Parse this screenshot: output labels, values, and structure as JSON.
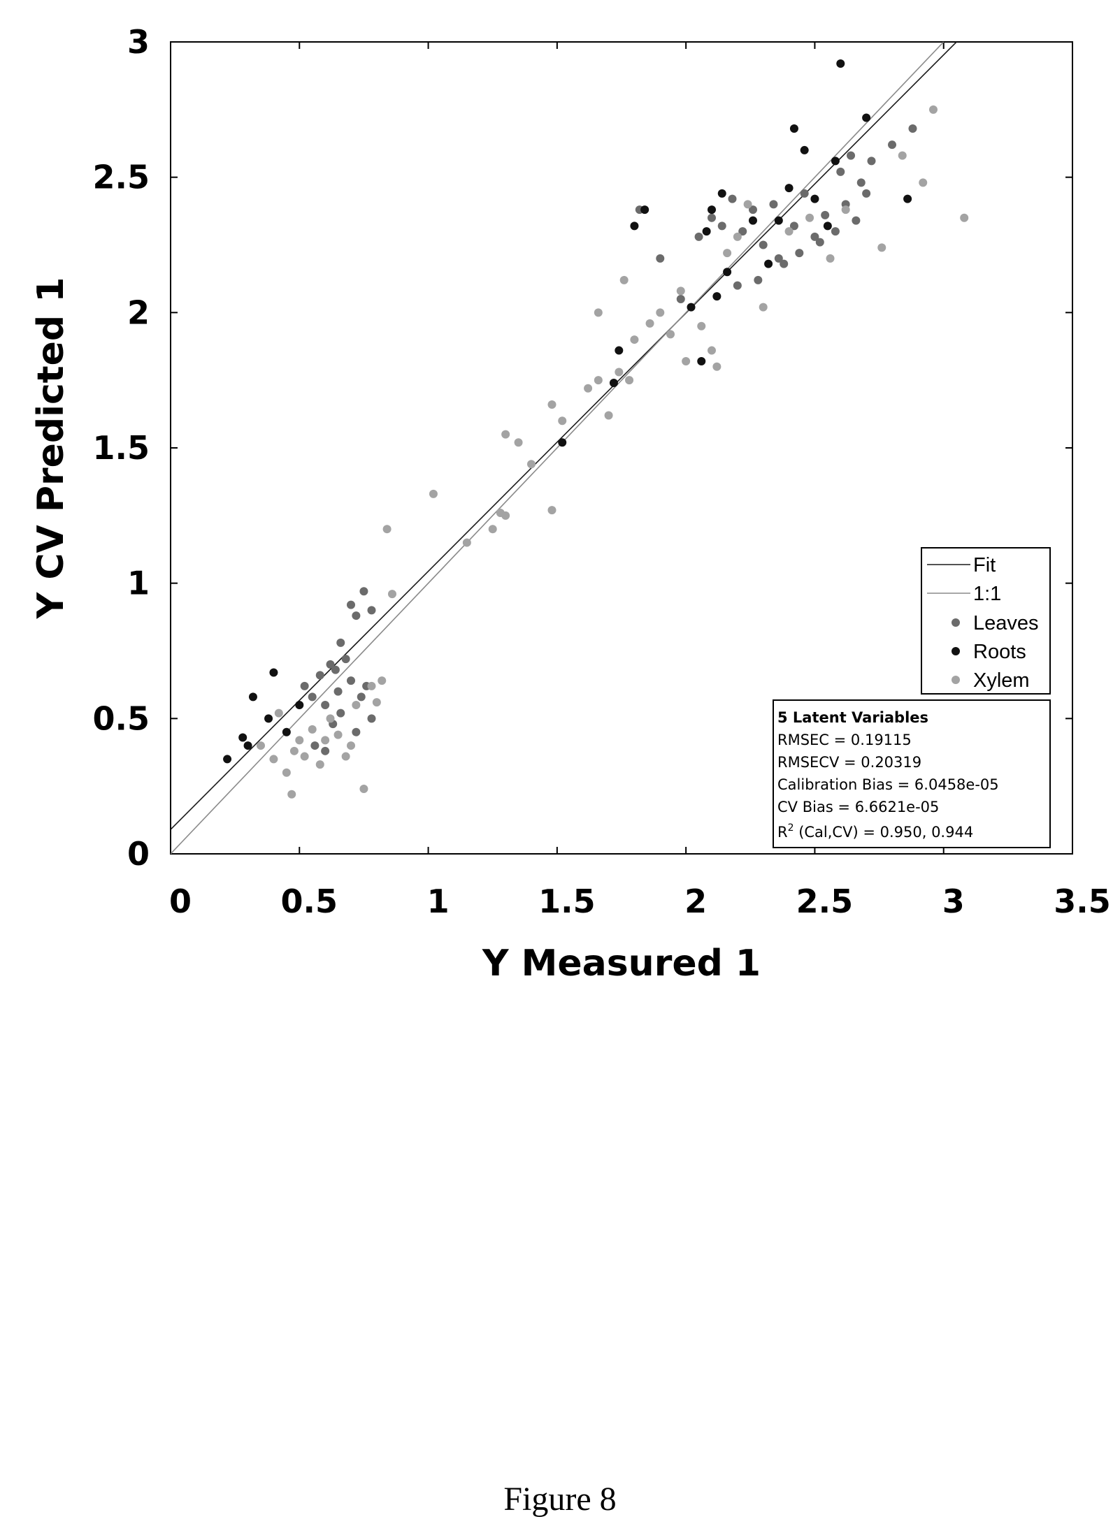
{
  "chart_data": {
    "type": "scatter",
    "xlabel": "Y Measured 1",
    "ylabel": "Y CV Predicted 1",
    "xlim": [
      0,
      3.5
    ],
    "ylim": [
      0,
      3
    ],
    "xticks": [
      "0",
      "0.5",
      "1",
      "1.5",
      "2",
      "2.5",
      "3",
      "3.5"
    ],
    "yticks": [
      "0",
      "0.5",
      "1",
      "1.5",
      "2",
      "2.5",
      "3"
    ],
    "grid": false,
    "legend_position": "right",
    "lines": [
      {
        "name": "Fit",
        "x": [
          0,
          3.05
        ],
        "y": [
          0.09,
          3.0
        ],
        "color": "#1a1a1a"
      },
      {
        "name": "1:1",
        "x": [
          0,
          3.0
        ],
        "y": [
          0,
          3.0
        ],
        "color": "#8a8a8a"
      }
    ],
    "series": [
      {
        "name": "Leaves",
        "color": "#6b6b6b",
        "points": [
          [
            0.52,
            0.62
          ],
          [
            0.55,
            0.58
          ],
          [
            0.58,
            0.66
          ],
          [
            0.6,
            0.55
          ],
          [
            0.62,
            0.7
          ],
          [
            0.63,
            0.48
          ],
          [
            0.65,
            0.6
          ],
          [
            0.66,
            0.52
          ],
          [
            0.68,
            0.72
          ],
          [
            0.7,
            0.64
          ],
          [
            0.72,
            0.45
          ],
          [
            0.74,
            0.58
          ],
          [
            0.76,
            0.62
          ],
          [
            0.78,
            0.5
          ],
          [
            0.56,
            0.4
          ],
          [
            0.6,
            0.38
          ],
          [
            0.64,
            0.68
          ],
          [
            0.7,
            0.92
          ],
          [
            0.72,
            0.88
          ],
          [
            0.75,
            0.97
          ],
          [
            0.78,
            0.9
          ],
          [
            0.66,
            0.78
          ],
          [
            1.82,
            2.38
          ],
          [
            1.9,
            2.2
          ],
          [
            1.98,
            2.05
          ],
          [
            2.05,
            2.28
          ],
          [
            2.1,
            2.35
          ],
          [
            2.14,
            2.32
          ],
          [
            2.18,
            2.42
          ],
          [
            2.22,
            2.3
          ],
          [
            2.26,
            2.38
          ],
          [
            2.3,
            2.25
          ],
          [
            2.34,
            2.4
          ],
          [
            2.38,
            2.18
          ],
          [
            2.42,
            2.32
          ],
          [
            2.46,
            2.44
          ],
          [
            2.5,
            2.28
          ],
          [
            2.54,
            2.36
          ],
          [
            2.58,
            2.3
          ],
          [
            2.62,
            2.4
          ],
          [
            2.66,
            2.34
          ],
          [
            2.7,
            2.44
          ],
          [
            2.2,
            2.1
          ],
          [
            2.28,
            2.12
          ],
          [
            2.36,
            2.2
          ],
          [
            2.44,
            2.22
          ],
          [
            2.52,
            2.26
          ],
          [
            2.6,
            2.52
          ],
          [
            2.64,
            2.58
          ],
          [
            2.68,
            2.48
          ],
          [
            2.72,
            2.56
          ],
          [
            2.8,
            2.62
          ],
          [
            2.88,
            2.68
          ]
        ]
      },
      {
        "name": "Roots",
        "color": "#111111",
        "points": [
          [
            0.22,
            0.35
          ],
          [
            0.28,
            0.43
          ],
          [
            0.3,
            0.4
          ],
          [
            0.32,
            0.58
          ],
          [
            0.38,
            0.5
          ],
          [
            0.4,
            0.67
          ],
          [
            0.45,
            0.45
          ],
          [
            0.5,
            0.55
          ],
          [
            1.52,
            1.52
          ],
          [
            1.72,
            1.74
          ],
          [
            1.74,
            1.86
          ],
          [
            1.8,
            2.32
          ],
          [
            1.84,
            2.38
          ],
          [
            2.02,
            2.02
          ],
          [
            2.06,
            1.82
          ],
          [
            2.08,
            2.3
          ],
          [
            2.1,
            2.38
          ],
          [
            2.12,
            2.06
          ],
          [
            2.14,
            2.44
          ],
          [
            2.16,
            2.15
          ],
          [
            2.26,
            2.34
          ],
          [
            2.32,
            2.18
          ],
          [
            2.36,
            2.34
          ],
          [
            2.4,
            2.46
          ],
          [
            2.42,
            2.68
          ],
          [
            2.46,
            2.6
          ],
          [
            2.5,
            2.42
          ],
          [
            2.55,
            2.32
          ],
          [
            2.58,
            2.56
          ],
          [
            2.6,
            2.92
          ],
          [
            2.7,
            2.72
          ],
          [
            2.86,
            2.42
          ]
        ]
      },
      {
        "name": "Xylem",
        "color": "#a3a3a3",
        "points": [
          [
            0.35,
            0.4
          ],
          [
            0.4,
            0.35
          ],
          [
            0.42,
            0.52
          ],
          [
            0.45,
            0.3
          ],
          [
            0.48,
            0.38
          ],
          [
            0.5,
            0.42
          ],
          [
            0.52,
            0.36
          ],
          [
            0.55,
            0.46
          ],
          [
            0.58,
            0.33
          ],
          [
            0.6,
            0.42
          ],
          [
            0.62,
            0.5
          ],
          [
            0.65,
            0.44
          ],
          [
            0.68,
            0.36
          ],
          [
            0.7,
            0.4
          ],
          [
            0.72,
            0.55
          ],
          [
            0.75,
            0.24
          ],
          [
            0.78,
            0.62
          ],
          [
            0.8,
            0.56
          ],
          [
            0.82,
            0.64
          ],
          [
            0.47,
            0.22
          ],
          [
            0.86,
            0.96
          ],
          [
            0.84,
            1.2
          ],
          [
            1.02,
            1.33
          ],
          [
            1.15,
            1.15
          ],
          [
            1.25,
            1.2
          ],
          [
            1.28,
            1.26
          ],
          [
            1.3,
            1.25
          ],
          [
            1.3,
            1.55
          ],
          [
            1.35,
            1.52
          ],
          [
            1.4,
            1.44
          ],
          [
            1.48,
            1.27
          ],
          [
            1.48,
            1.66
          ],
          [
            1.52,
            1.6
          ],
          [
            1.62,
            1.72
          ],
          [
            1.66,
            1.75
          ],
          [
            1.7,
            1.62
          ],
          [
            1.74,
            1.78
          ],
          [
            1.78,
            1.75
          ],
          [
            1.8,
            1.9
          ],
          [
            1.86,
            1.96
          ],
          [
            1.9,
            2.0
          ],
          [
            1.94,
            1.92
          ],
          [
            1.98,
            2.08
          ],
          [
            2.0,
            1.82
          ],
          [
            2.06,
            1.95
          ],
          [
            2.1,
            1.86
          ],
          [
            2.12,
            1.8
          ],
          [
            2.16,
            2.22
          ],
          [
            2.2,
            2.28
          ],
          [
            2.24,
            2.4
          ],
          [
            2.3,
            2.02
          ],
          [
            2.4,
            2.3
          ],
          [
            2.48,
            2.35
          ],
          [
            2.56,
            2.2
          ],
          [
            2.62,
            2.38
          ],
          [
            2.76,
            2.24
          ],
          [
            2.84,
            2.58
          ],
          [
            2.92,
            2.48
          ],
          [
            3.08,
            2.35
          ],
          [
            2.96,
            2.75
          ],
          [
            1.66,
            2.0
          ],
          [
            1.76,
            2.12
          ]
        ]
      }
    ],
    "stats_box": {
      "line1": "5 Latent Variables",
      "line2": "RMSEC = 0.19115",
      "line3": "RMSECV = 0.20319",
      "line4": "Calibration Bias = 6.0458e-05",
      "line5": "CV Bias = 6.6621e-05",
      "line6_prefix": "R",
      "line6_sup": "2",
      "line6_rest": " (Cal,CV) = 0.950, 0.944"
    }
  },
  "caption": "Figure 8"
}
